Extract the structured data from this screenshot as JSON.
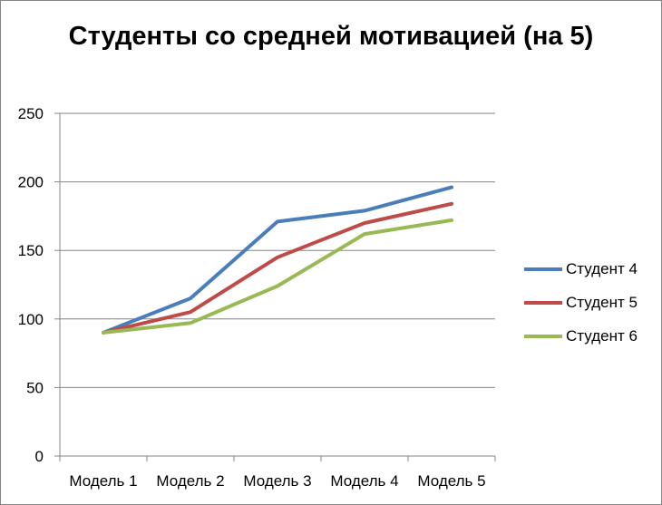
{
  "chart_data": {
    "type": "line",
    "title": "Студенты со средней мотивацией (на 5)",
    "xlabel": "",
    "ylabel": "",
    "categories": [
      "Модель 1",
      "Модель 2",
      "Модель 3",
      "Модель 4",
      "Модель 5"
    ],
    "ylim": [
      0,
      250
    ],
    "yticks": [
      "0",
      "50",
      "100",
      "150",
      "200",
      "250"
    ],
    "grid": true,
    "legend": "right",
    "series": [
      {
        "name": "Студент 4",
        "color": "#4a7ebb",
        "values": [
          90,
          115,
          171,
          179,
          196
        ]
      },
      {
        "name": "Студент 5",
        "color": "#be4b48",
        "values": [
          90,
          105,
          145,
          170,
          184
        ]
      },
      {
        "name": "Студент 6",
        "color": "#98b954",
        "values": [
          90,
          97,
          124,
          162,
          172
        ]
      }
    ]
  }
}
